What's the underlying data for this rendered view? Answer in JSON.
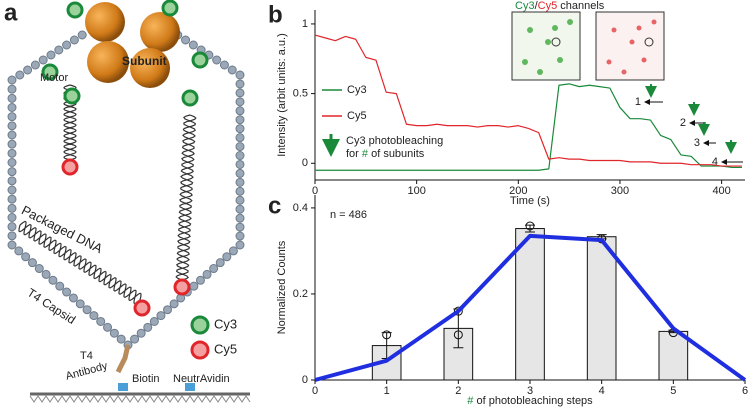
{
  "panel_labels": [
    "a",
    "b",
    "c"
  ],
  "diagram": {
    "motor": "Motor",
    "subunit": "Subunit",
    "packaged_dna": "Packaged DNA",
    "capsid": "T4 Capsid",
    "antibody": [
      "T4",
      "Antibody"
    ],
    "biotin": "Biotin",
    "neutravidin": "NeutrAvidin",
    "legend": [
      "Cy3",
      "Cy5"
    ]
  },
  "chart_data": [
    {
      "type": "line",
      "xlabel": "Time (s)",
      "ylabel": "Intensity (arbit units: a.u.)",
      "x": [
        0,
        10,
        20,
        30,
        40,
        50,
        60,
        70,
        80,
        90,
        100,
        110,
        120,
        130,
        140,
        150,
        160,
        170,
        180,
        190,
        200,
        210,
        220,
        230,
        240,
        250,
        260,
        270,
        280,
        290,
        300,
        310,
        320,
        330,
        340,
        350,
        360,
        370,
        380,
        390,
        400,
        410,
        420
      ],
      "series": [
        {
          "name": "Cy3",
          "color": "#1a8a3a",
          "values": [
            -0.05,
            -0.05,
            -0.05,
            -0.05,
            -0.05,
            -0.05,
            -0.05,
            -0.05,
            -0.05,
            -0.05,
            -0.05,
            -0.05,
            -0.05,
            -0.05,
            -0.05,
            -0.05,
            -0.05,
            -0.05,
            -0.05,
            -0.05,
            -0.05,
            -0.05,
            -0.05,
            -0.04,
            0.56,
            0.57,
            0.55,
            0.56,
            0.55,
            0.54,
            0.4,
            0.32,
            0.32,
            0.31,
            0.2,
            0.17,
            0.06,
            0.05,
            -0.02,
            -0.02,
            -0.02,
            -0.03,
            -0.03
          ]
        },
        {
          "name": "Cy5",
          "color": "#e0262b",
          "values": [
            0.92,
            0.9,
            0.88,
            0.91,
            0.89,
            0.76,
            0.74,
            0.51,
            0.5,
            0.28,
            0.27,
            0.27,
            0.28,
            0.27,
            0.27,
            0.27,
            0.26,
            0.27,
            0.27,
            0.26,
            0.27,
            0.25,
            0.22,
            0.03,
            0.04,
            0.03,
            0.03,
            0.02,
            0.02,
            0.02,
            0.02,
            0.01,
            0.01,
            0.01,
            0.0,
            0.0,
            0.0,
            -0.01,
            -0.01,
            -0.01,
            -0.02,
            -0.02,
            -0.02
          ]
        }
      ],
      "xlim": [
        0,
        423
      ],
      "xticks": [
        0,
        100,
        200,
        300,
        400
      ],
      "ylim": [
        -0.12,
        1.1
      ],
      "yticks": [
        0,
        0.5,
        1
      ],
      "inset_title": [
        "Cy3",
        "/",
        "Cy5",
        " channels"
      ],
      "annotation": [
        "Cy3 photobleaching",
        "for ",
        "#",
        " of subunits"
      ],
      "steps": [
        "1",
        "2",
        "3",
        "4"
      ]
    },
    {
      "type": "bar",
      "xlabel": [
        "#",
        " of photobleaching steps"
      ],
      "ylabel": "Normalized Counts",
      "annotation": "n = 486",
      "x": [
        1,
        2,
        3,
        4,
        5
      ],
      "values": [
        0.08,
        0.12,
        0.352,
        0.333,
        0.113
      ],
      "errors": [
        0.03,
        0.045,
        0.008,
        0.005,
        0.003
      ],
      "color": "#e6e6e6",
      "points": {
        "x": [
          1,
          2,
          2,
          3,
          4,
          5
        ],
        "y": [
          0.105,
          0.16,
          0.105,
          0.358,
          0.328,
          0.11
        ]
      },
      "line": {
        "x": [
          0,
          1,
          2,
          3,
          4,
          5,
          6
        ],
        "values": [
          0,
          0.045,
          0.16,
          0.335,
          0.325,
          0.12,
          0
        ],
        "color": "#1f2fe0"
      },
      "xlim": [
        0,
        6
      ],
      "xticks": [
        0,
        1,
        2,
        3,
        4,
        5,
        6
      ],
      "ylim": [
        0,
        0.43
      ],
      "yticks": [
        0,
        0.2,
        0.4
      ]
    }
  ]
}
